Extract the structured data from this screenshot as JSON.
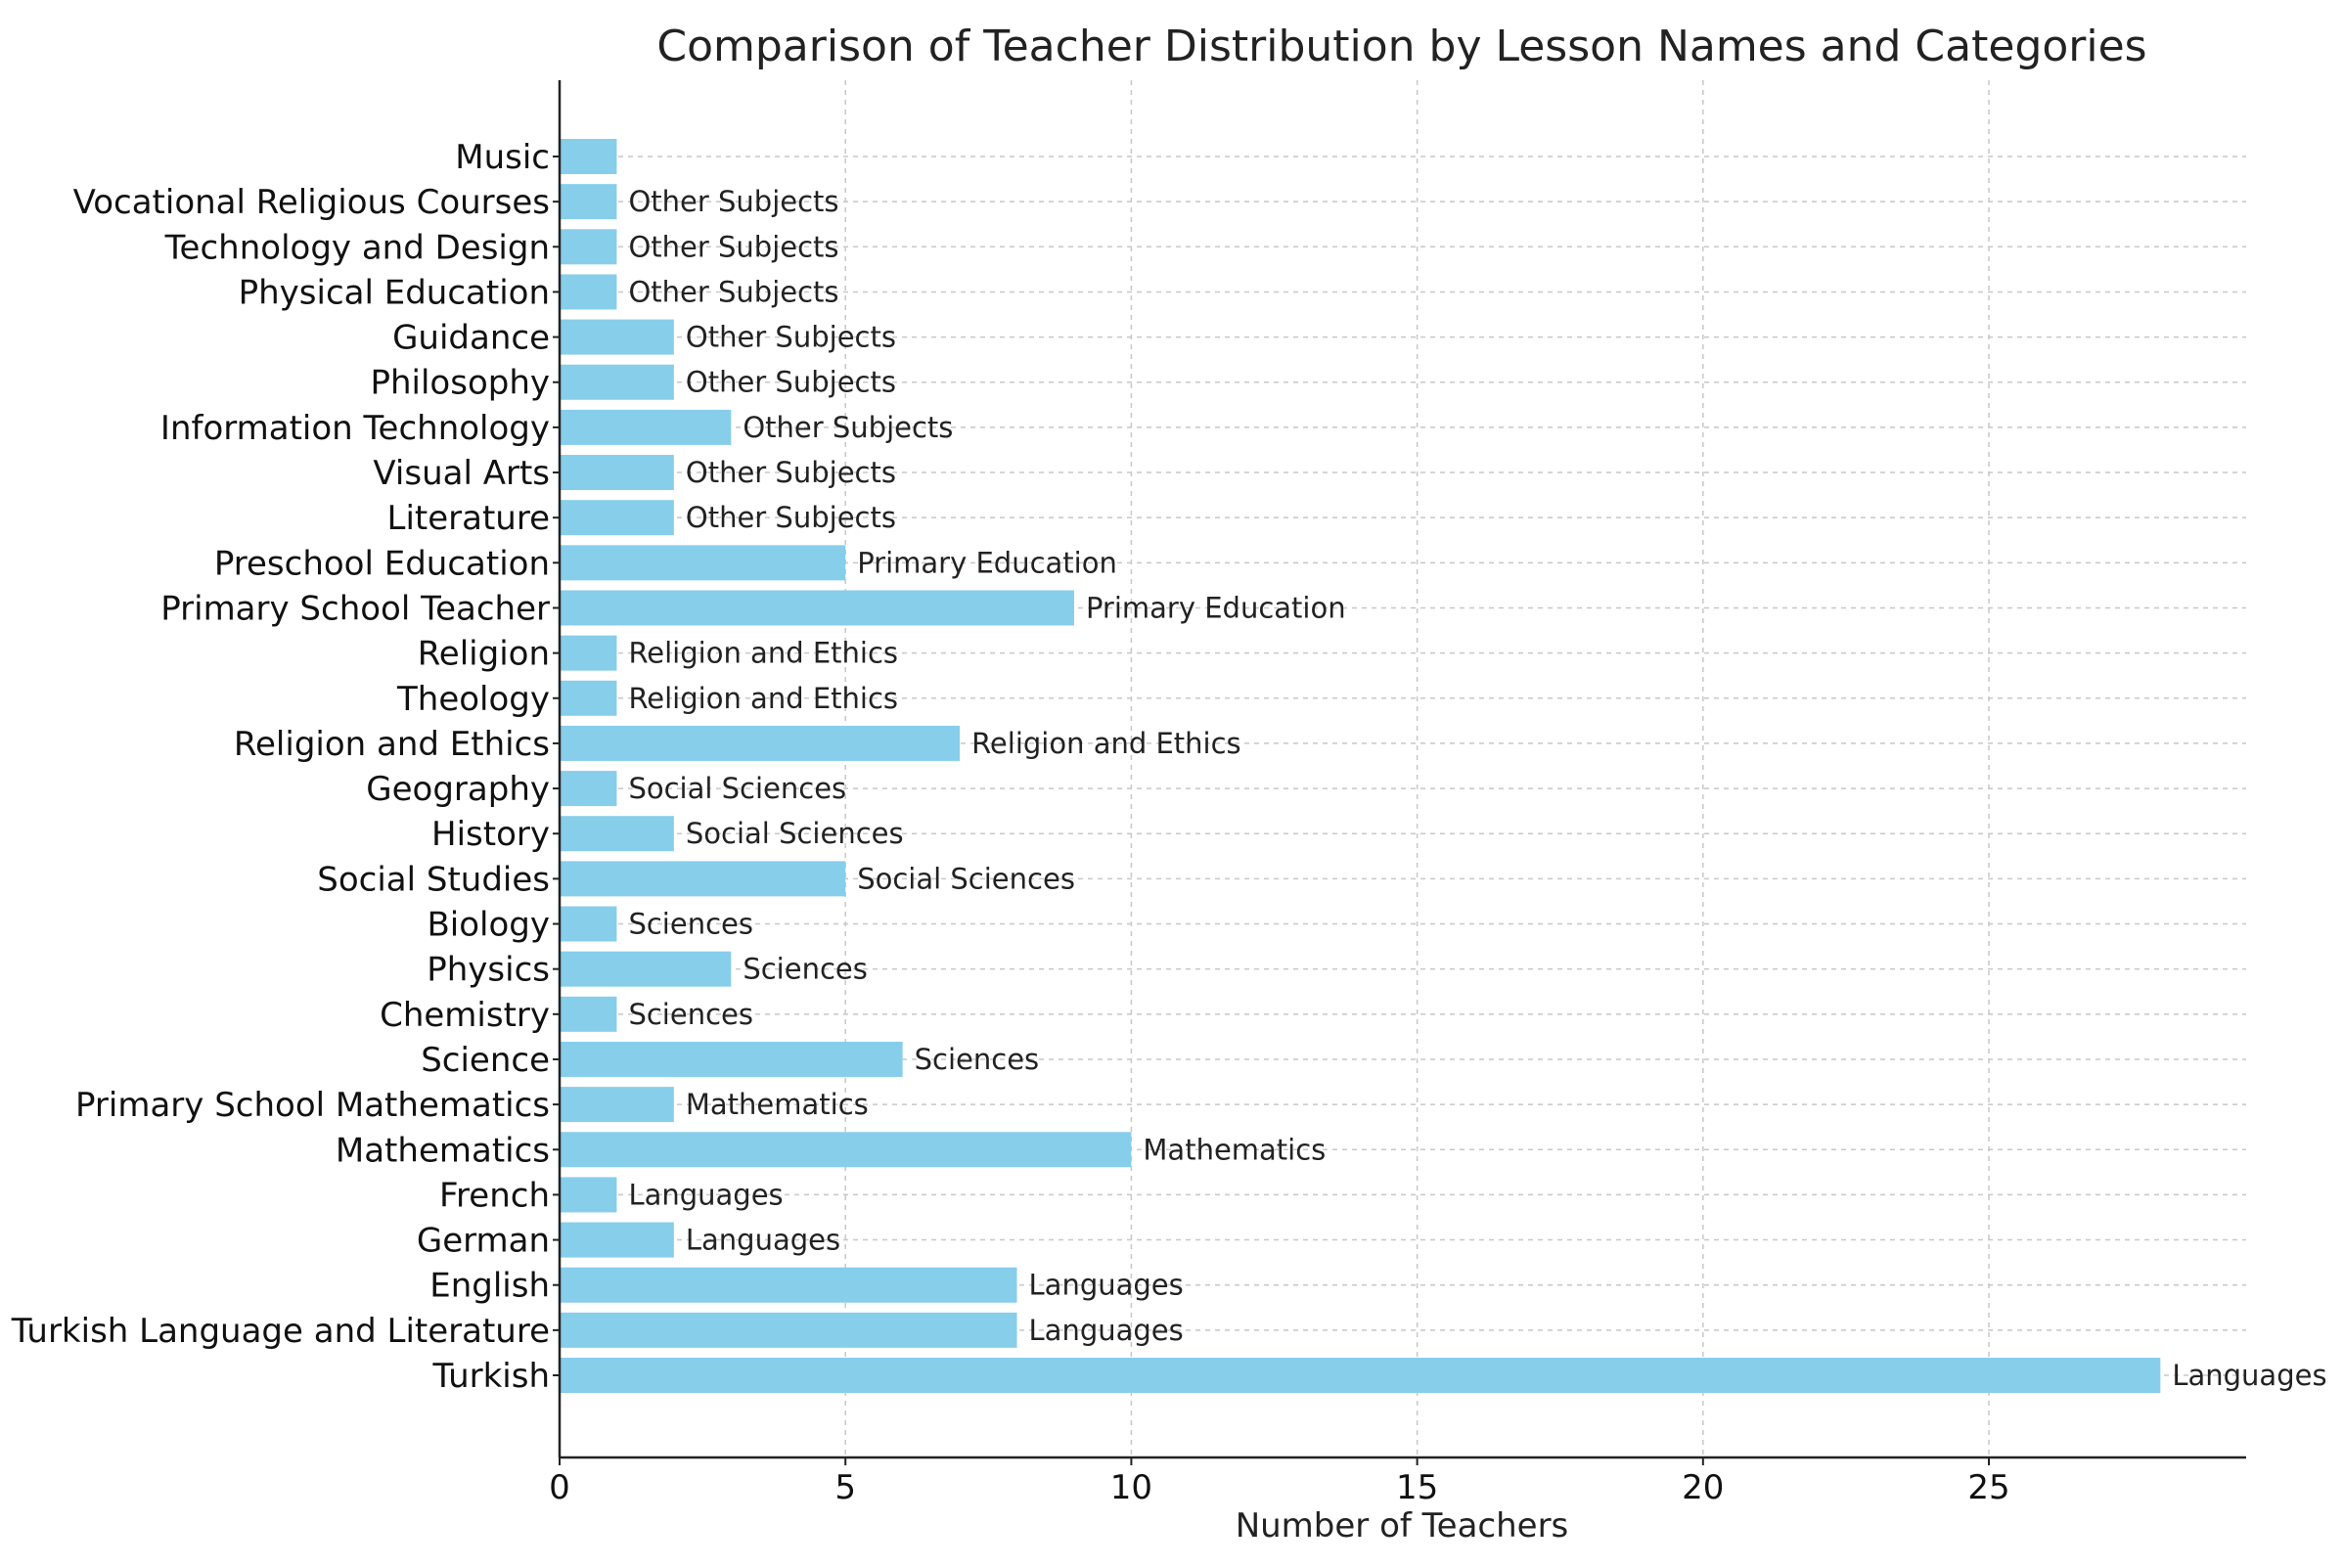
{
  "chart_data": {
    "type": "bar",
    "orientation": "horizontal",
    "title": "Comparison of Teacher Distribution by Lesson Names and Categories",
    "xlabel": "Number of Teachers",
    "ylabel": "",
    "xlim": [
      0,
      29.5
    ],
    "xticks": [
      0,
      5,
      10,
      15,
      20,
      25
    ],
    "grid": true,
    "bar_color": "#87ceeb",
    "categories": [
      "Turkish",
      "Turkish Language and Literature",
      "English",
      "German",
      "French",
      "Mathematics",
      "Primary School Mathematics",
      "Science",
      "Chemistry",
      "Physics",
      "Biology",
      "Social Studies",
      "History",
      "Geography",
      "Religion and Ethics",
      "Theology",
      "Religion",
      "Primary School Teacher",
      "Preschool Education",
      "Literature",
      "Visual Arts",
      "Information Technology",
      "Philosophy",
      "Guidance",
      "Physical Education",
      "Technology and Design",
      "Vocational Religious Courses",
      "Music"
    ],
    "values": [
      28,
      8,
      8,
      2,
      1,
      10,
      2,
      6,
      1,
      3,
      1,
      5,
      2,
      1,
      7,
      1,
      1,
      9,
      5,
      2,
      2,
      3,
      2,
      2,
      1,
      1,
      1,
      1
    ],
    "bar_labels": [
      "Languages",
      "Languages",
      "Languages",
      "Languages",
      "Languages",
      "Mathematics",
      "Mathematics",
      "Sciences",
      "Sciences",
      "Sciences",
      "Sciences",
      "Social Sciences",
      "Social Sciences",
      "Social Sciences",
      "Religion and Ethics",
      "Religion and Ethics",
      "Religion and Ethics",
      "Primary Education",
      "Primary Education",
      "Other Subjects",
      "Other Subjects",
      "Other Subjects",
      "Other Subjects",
      "Other Subjects",
      "Other Subjects",
      "Other Subjects",
      "Other Subjects",
      ""
    ]
  }
}
